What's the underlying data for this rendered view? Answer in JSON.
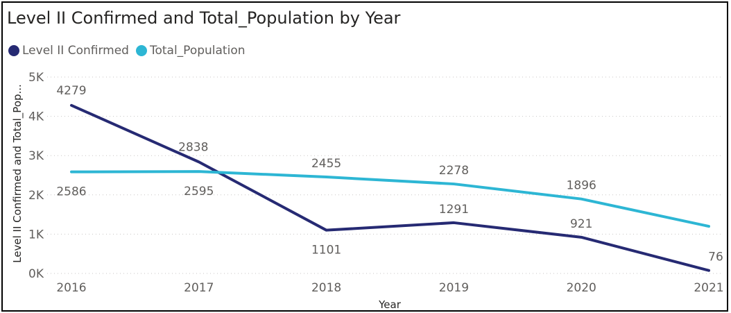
{
  "chart_data": {
    "type": "line",
    "title": "Level II Confirmed and Total_Population by Year",
    "xlabel": "Year",
    "ylabel": "Level II Confirmed and Total_Pop...",
    "categories": [
      "2016",
      "2017",
      "2018",
      "2019",
      "2020",
      "2021"
    ],
    "y_ticks": [
      "0K",
      "1K",
      "2K",
      "3K",
      "4K",
      "5K"
    ],
    "ylim": [
      0,
      5000
    ],
    "grid": true,
    "legend_position": "top-left",
    "series": [
      {
        "name": "Level II Confirmed",
        "color": "#262a73",
        "values": [
          4279,
          2838,
          1101,
          1291,
          921,
          76
        ],
        "labels": [
          "4279",
          "2838",
          "1101",
          "1291",
          "921",
          "76"
        ]
      },
      {
        "name": "Total_Population",
        "color": "#2db6d4",
        "values": [
          2586,
          2595,
          2455,
          2278,
          1896,
          1200
        ],
        "labels": [
          "2586",
          "2595",
          "2455",
          "2278",
          "1896",
          ""
        ]
      }
    ]
  }
}
